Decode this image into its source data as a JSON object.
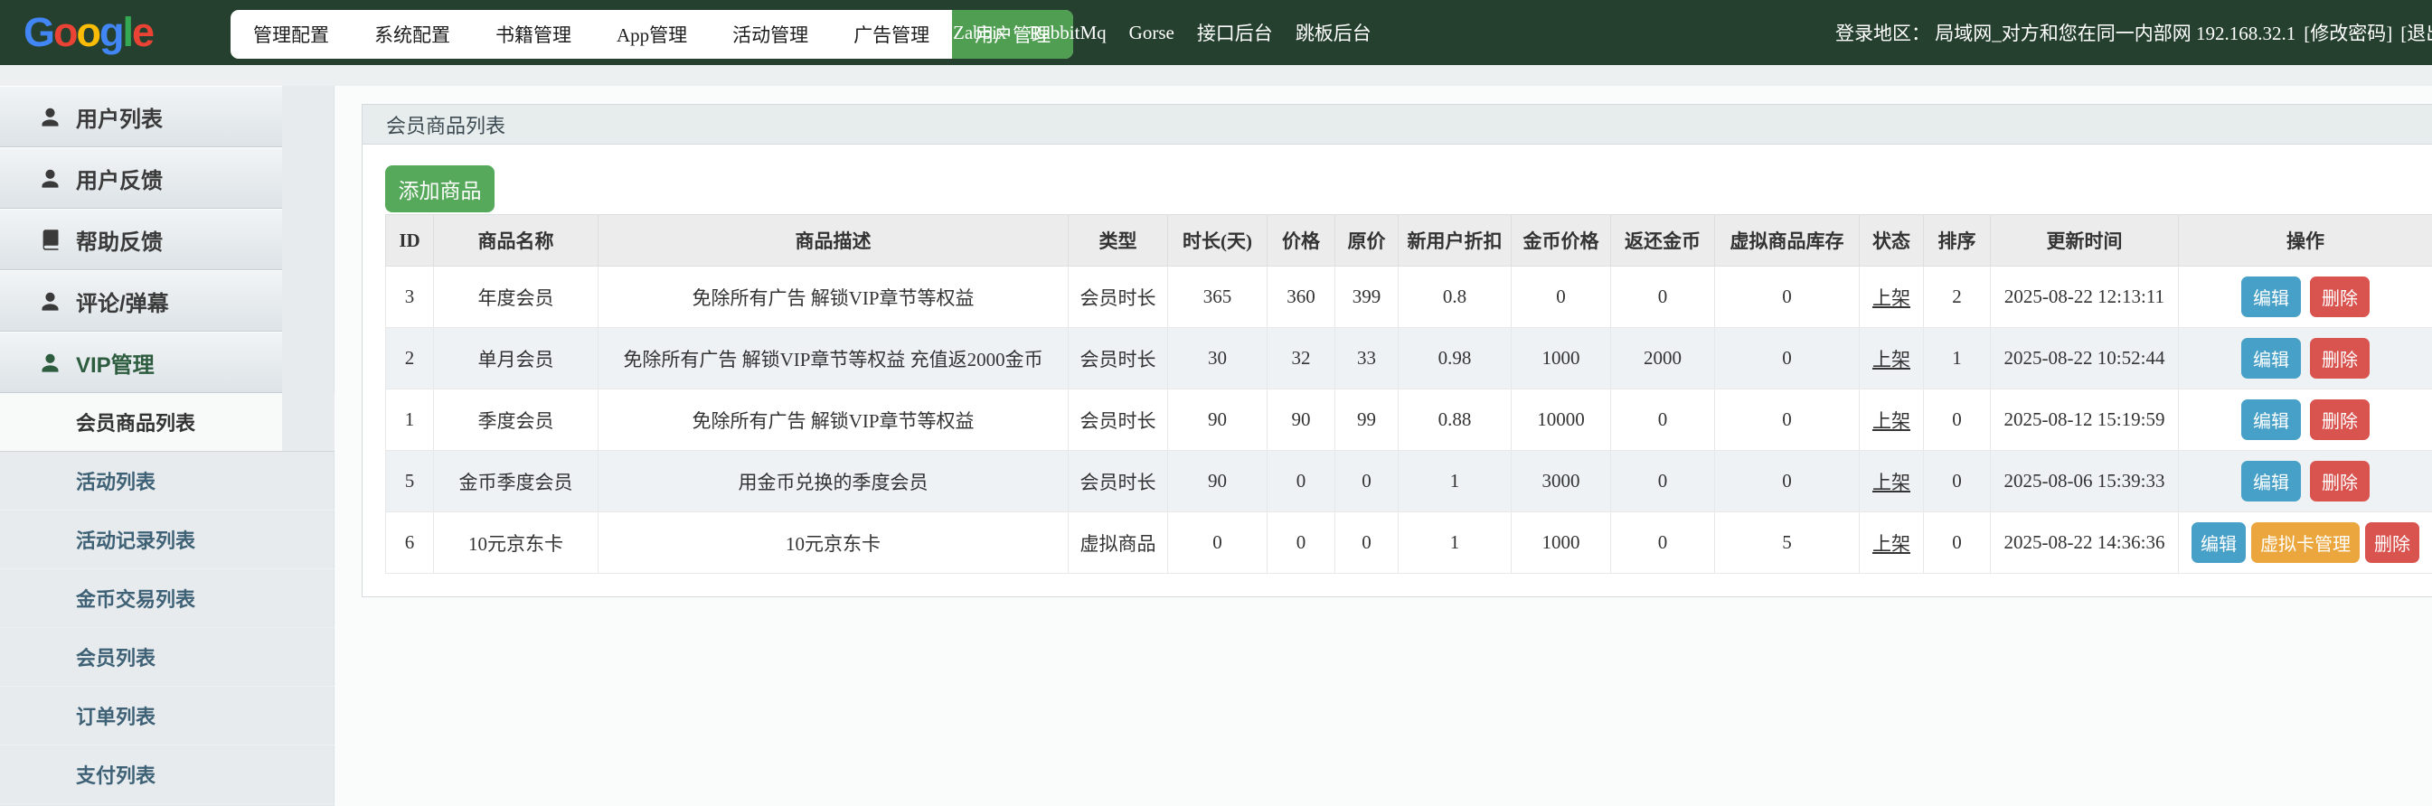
{
  "colors": {
    "navbar_bg": "#25402e",
    "active_menu_green": "#4f9e52",
    "add_button_green": "#56a95a",
    "edit_blue": "#47a0c7",
    "delete_red": "#d9534f",
    "vcard_orange": "#eba73e",
    "row_stripe": "#eef2f5",
    "logo_blue": "#4285F4",
    "logo_red": "#EA4335",
    "logo_yellow": "#FBBC05",
    "logo_green": "#34A853"
  },
  "navbar": {
    "logo_letters": [
      {
        "ch": "G",
        "color": "#4285F4"
      },
      {
        "ch": "o",
        "color": "#EA4335"
      },
      {
        "ch": "o",
        "color": "#FBBC05"
      },
      {
        "ch": "g",
        "color": "#4285F4"
      },
      {
        "ch": "l",
        "color": "#34A853"
      },
      {
        "ch": "e",
        "color": "#EA4335"
      }
    ],
    "menu": [
      {
        "label": "管理配置",
        "active": false
      },
      {
        "label": "系统配置",
        "active": false
      },
      {
        "label": "书籍管理",
        "active": false
      },
      {
        "label": "App管理",
        "active": false
      },
      {
        "label": "活动管理",
        "active": false
      },
      {
        "label": "广告管理",
        "active": false
      },
      {
        "label": "用户管理",
        "active": true
      }
    ],
    "links": [
      "Zabbix",
      "RabbitMq",
      "Gorse",
      "接口后台",
      "跳板后台"
    ],
    "login": {
      "prefix": "登录地区： 局域网_对方和您在同一内部网 192.168.32.1",
      "change_password": "[修改密码]",
      "logout": "[退出登录]"
    }
  },
  "sidebar": {
    "items": [
      {
        "label": "用户列表",
        "icon": "user",
        "active": false
      },
      {
        "label": "用户反馈",
        "icon": "user",
        "active": false
      },
      {
        "label": "帮助反馈",
        "icon": "book",
        "active": false
      },
      {
        "label": "评论/弹幕",
        "icon": "user",
        "active": false
      },
      {
        "label": "VIP管理",
        "icon": "user",
        "active": true
      }
    ],
    "subitems": [
      {
        "label": "会员商品列表",
        "active": true
      },
      {
        "label": "活动列表",
        "active": false
      },
      {
        "label": "活动记录列表",
        "active": false
      },
      {
        "label": "金币交易列表",
        "active": false
      },
      {
        "label": "会员列表",
        "active": false
      },
      {
        "label": "订单列表",
        "active": false
      },
      {
        "label": "支付列表",
        "active": false
      }
    ]
  },
  "panel": {
    "title": "会员商品列表",
    "add_button_label": "添加商品",
    "table": {
      "headers": [
        "ID",
        "商品名称",
        "商品描述",
        "类型",
        "时长(天)",
        "价格",
        "原价",
        "新用户折扣",
        "金币价格",
        "返还金币",
        "虚拟商品库存",
        "状态",
        "排序",
        "更新时间",
        "操作"
      ],
      "action_labels": {
        "edit": "编辑",
        "delete": "删除",
        "vcard": "虚拟卡管理"
      },
      "rows": [
        {
          "id": "3",
          "name": "年度会员",
          "desc": "免除所有广告 解锁VIP章节等权益",
          "type": "会员时长",
          "days": "365",
          "price": "360",
          "orig": "399",
          "discount": "0.8",
          "coin_price": "0",
          "coin_return": "0",
          "stock": "0",
          "status": "上架",
          "sort": "2",
          "updated": "2025-08-22 12:13:11",
          "actions": [
            "edit",
            "delete"
          ]
        },
        {
          "id": "2",
          "name": "单月会员",
          "desc": "免除所有广告 解锁VIP章节等权益 充值返2000金币",
          "type": "会员时长",
          "days": "30",
          "price": "32",
          "orig": "33",
          "discount": "0.98",
          "coin_price": "1000",
          "coin_return": "2000",
          "stock": "0",
          "status": "上架",
          "sort": "1",
          "updated": "2025-08-22 10:52:44",
          "actions": [
            "edit",
            "delete"
          ]
        },
        {
          "id": "1",
          "name": "季度会员",
          "desc": "免除所有广告 解锁VIP章节等权益",
          "type": "会员时长",
          "days": "90",
          "price": "90",
          "orig": "99",
          "discount": "0.88",
          "coin_price": "10000",
          "coin_return": "0",
          "stock": "0",
          "status": "上架",
          "sort": "0",
          "updated": "2025-08-12 15:19:59",
          "actions": [
            "edit",
            "delete"
          ]
        },
        {
          "id": "5",
          "name": "金币季度会员",
          "desc": "用金币兑换的季度会员",
          "type": "会员时长",
          "days": "90",
          "price": "0",
          "orig": "0",
          "discount": "1",
          "coin_price": "3000",
          "coin_return": "0",
          "stock": "0",
          "status": "上架",
          "sort": "0",
          "updated": "2025-08-06 15:39:33",
          "actions": [
            "edit",
            "delete"
          ]
        },
        {
          "id": "6",
          "name": "10元京东卡",
          "desc": "10元京东卡",
          "type": "虚拟商品",
          "days": "0",
          "price": "0",
          "orig": "0",
          "discount": "1",
          "coin_price": "1000",
          "coin_return": "0",
          "stock": "5",
          "status": "上架",
          "sort": "0",
          "updated": "2025-08-22 14:36:36",
          "actions": [
            "edit",
            "vcard",
            "delete"
          ]
        }
      ]
    }
  }
}
